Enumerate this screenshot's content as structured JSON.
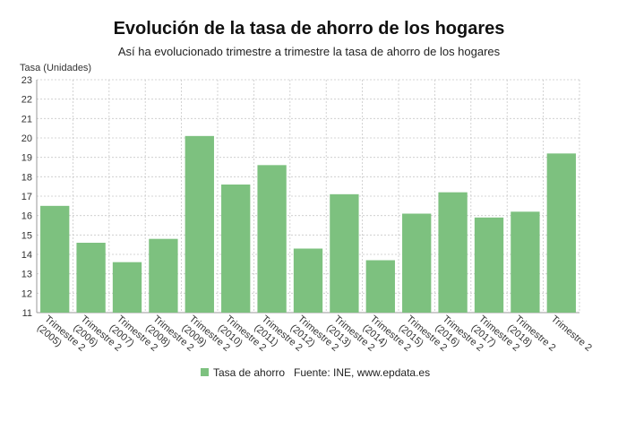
{
  "chart_data": {
    "type": "bar",
    "title": "Evolución de la tasa de ahorro de los hogares",
    "subtitle": "Así ha evolucionado trimestre a trimestre la tasa de ahorro de los hogares",
    "ylabel": "Tasa (Unidades)",
    "ylim": [
      11,
      23
    ],
    "yticks": [
      11,
      12,
      13,
      14,
      15,
      16,
      17,
      18,
      19,
      20,
      21,
      22,
      23
    ],
    "grid": true,
    "legend_position": "bottom",
    "source": "Fuente: INE, www.epdata.es",
    "bar_color": "#7dc17f",
    "categories": [
      "Trimestre 2 (2005)",
      "Trimestre 2 (2006)",
      "Trimestre 2 (2007)",
      "Trimestre 2 (2008)",
      "Trimestre 2 (2009)",
      "Trimestre 2 (2010)",
      "Trimestre 2 (2011)",
      "Trimestre 2 (2012)",
      "Trimestre 2 (2013)",
      "Trimestre 2 (2014)",
      "Trimestre 2 (2015)",
      "Trimestre 2 (2016)",
      "Trimestre 2 (2017)",
      "Trimestre 2 (2018)",
      "Trimestre 2"
    ],
    "series": [
      {
        "name": "Tasa de ahorro",
        "values": [
          16.5,
          14.6,
          13.6,
          14.8,
          20.1,
          17.6,
          18.6,
          14.3,
          17.1,
          13.7,
          16.1,
          17.2,
          15.9,
          16.2,
          19.2
        ]
      }
    ]
  }
}
